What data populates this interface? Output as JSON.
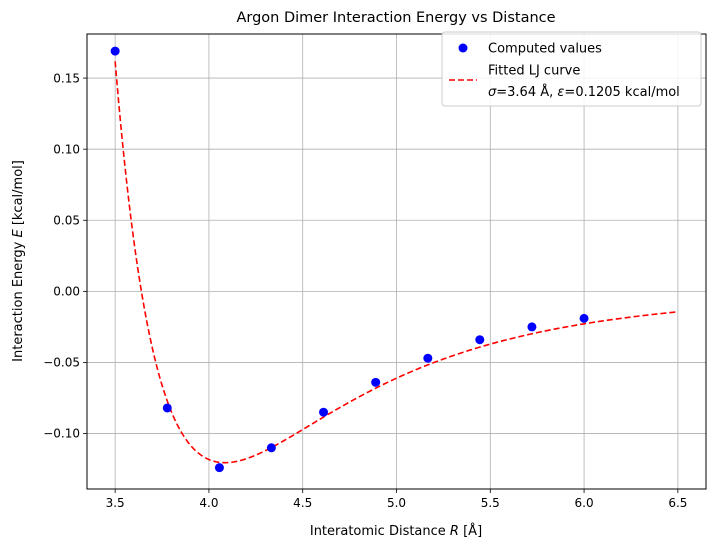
{
  "chart_data": {
    "type": "scatter",
    "title": "Argon Dimer Interaction Energy vs Distance",
    "xlabel_pre": "Interatomic Distance ",
    "xlabel_var": "R",
    "xlabel_post": " [Å]",
    "ylabel_pre": "Interaction Energy ",
    "ylabel_var": "E",
    "ylabel_post": " [kcal/mol]",
    "xlim": [
      3.35,
      6.65
    ],
    "ylim": [
      -0.139,
      0.181
    ],
    "grid": true,
    "xticks": [
      3.5,
      4.0,
      4.5,
      5.0,
      5.5,
      6.0,
      6.5
    ],
    "xtick_labels": [
      "3.5",
      "4.0",
      "4.5",
      "5.0",
      "5.5",
      "6.0",
      "6.5"
    ],
    "yticks": [
      -0.1,
      -0.05,
      0.0,
      0.05,
      0.1,
      0.15
    ],
    "ytick_labels": [
      "−0.10",
      "−0.05",
      "0.00",
      "0.05",
      "0.10",
      "0.15"
    ],
    "series": [
      {
        "name": "Computed values",
        "kind": "points",
        "color": "#0000ff",
        "x": [
          3.5,
          3.778,
          4.056,
          4.333,
          4.611,
          4.889,
          5.167,
          5.444,
          5.722,
          6.0
        ],
        "y": [
          0.169,
          -0.082,
          -0.124,
          -0.11,
          -0.085,
          -0.064,
          -0.047,
          -0.034,
          -0.025,
          -0.019
        ]
      },
      {
        "name": "Fitted LJ curve",
        "kind": "dashed-line",
        "color": "#ff0000",
        "function": "lennard-jones",
        "sigma": 3.64,
        "epsilon": 0.1205,
        "x_range": [
          3.5,
          6.5
        ]
      }
    ],
    "legend": {
      "placement": "top-right",
      "entries": [
        {
          "label": "Computed values"
        },
        {
          "label_line1": "Fitted LJ curve",
          "label_line2_sigma": "σ",
          "label_line2_mid": "=3.64 Å, ",
          "label_line2_eps": "ε",
          "label_line2_end": "=0.1205 kcal/mol"
        }
      ]
    }
  }
}
